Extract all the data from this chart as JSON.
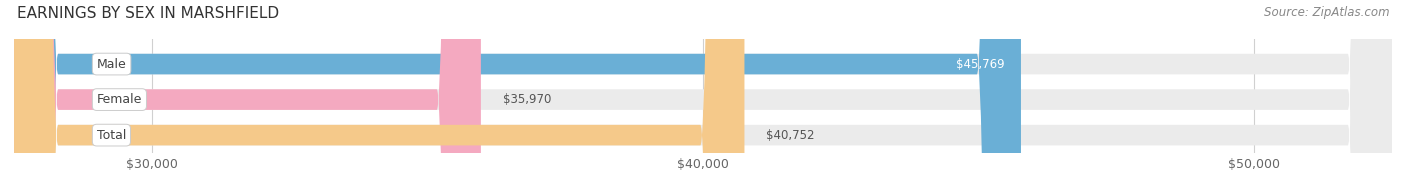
{
  "title": "EARNINGS BY SEX IN MARSHFIELD",
  "source": "Source: ZipAtlas.com",
  "categories": [
    "Male",
    "Female",
    "Total"
  ],
  "values": [
    45769,
    35970,
    40752
  ],
  "bar_colors": [
    "#6aafd6",
    "#f4a9c0",
    "#f5c98a"
  ],
  "bar_bg_color": "#ebebeb",
  "value_labels": [
    "$45,769",
    "$35,970",
    "$40,752"
  ],
  "value_label_colors": [
    "white",
    "#555555",
    "#555555"
  ],
  "x_min": 27500,
  "x_max": 52500,
  "x_ticks": [
    30000,
    40000,
    50000
  ],
  "x_tick_labels": [
    "$30,000",
    "$40,000",
    "$50,000"
  ],
  "title_fontsize": 11,
  "source_fontsize": 8.5,
  "label_fontsize": 9,
  "value_fontsize": 8.5,
  "bar_height": 0.58,
  "background_color": "#ffffff",
  "grid_color": "#d0d0d0"
}
